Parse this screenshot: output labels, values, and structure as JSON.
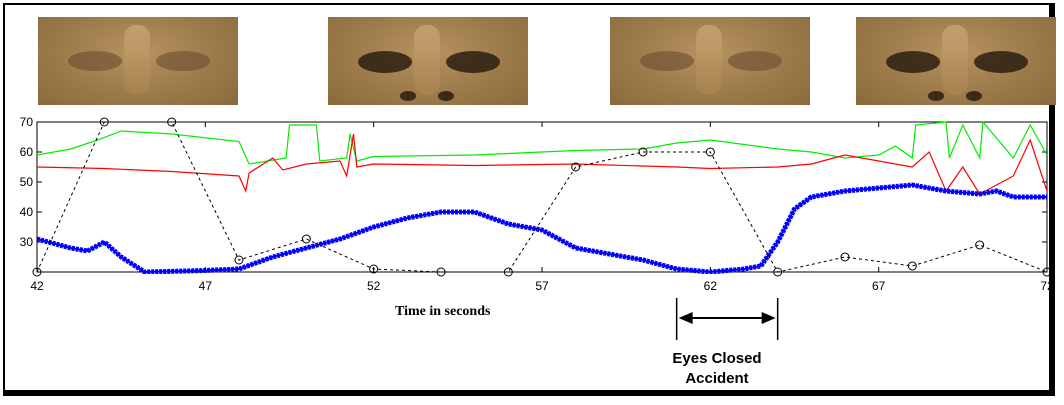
{
  "images": [
    {
      "name": "face-eyes-closed-1",
      "state": "closed"
    },
    {
      "name": "face-eyes-open-1",
      "state": "open"
    },
    {
      "name": "face-eyes-closed-2",
      "state": "closed"
    },
    {
      "name": "face-eyes-open-2",
      "state": "open"
    }
  ],
  "annotation": {
    "line1": "Eyes Closed",
    "line2": "Accident",
    "range": [
      61,
      64
    ]
  },
  "colors": {
    "blue": "#0000ff",
    "red": "#ff0000",
    "green": "#00ee00",
    "dashed": "#000000"
  },
  "chart_data": {
    "type": "line",
    "xlabel": "Time in seconds",
    "ylabel": "",
    "xlim": [
      42,
      72
    ],
    "ylim": [
      20,
      70
    ],
    "xticks": [
      42,
      47,
      52,
      57,
      62,
      67,
      72
    ],
    "yticks": [
      30,
      40,
      50,
      60,
      70
    ],
    "grid": false,
    "series": [
      {
        "key": "green",
        "style": "solid",
        "color": "#00ee00",
        "x": [
          42,
          43,
          43.8,
          44.5,
          46,
          48,
          48.3,
          49.4,
          49.5,
          50.3,
          50.4,
          51.2,
          51.3,
          51.5,
          52,
          55,
          58,
          60,
          61,
          62,
          64,
          65,
          66,
          67,
          67.5,
          68,
          68.1,
          69,
          69.1,
          69.5,
          70,
          70.1,
          71,
          71.5,
          72
        ],
        "y": [
          59,
          61,
          64,
          67,
          66,
          63.5,
          56,
          58,
          69,
          69,
          57,
          58,
          66,
          57,
          58.5,
          59,
          60.5,
          61,
          63,
          64,
          61,
          60,
          58,
          59,
          62,
          58,
          69,
          70,
          58,
          69,
          58,
          70,
          58,
          69,
          59
        ]
      },
      {
        "key": "red",
        "style": "solid",
        "color": "#ff0000",
        "x": [
          42,
          44,
          46,
          48,
          48.2,
          48.3,
          49,
          49.3,
          50,
          51,
          51.2,
          51.4,
          51.5,
          52,
          55,
          58,
          61,
          62,
          64,
          65,
          66,
          67,
          68,
          68.5,
          69,
          69.5,
          70,
          71,
          71.5,
          72
        ],
        "y": [
          55,
          54.5,
          53.5,
          52,
          47,
          53,
          58,
          54,
          56,
          57,
          52,
          66,
          55,
          56,
          55.5,
          56,
          55,
          54.5,
          55,
          56,
          59,
          57,
          55,
          60,
          47,
          55,
          46,
          52,
          64,
          47
        ]
      },
      {
        "key": "blue",
        "style": "thick-x",
        "color": "#0000ff",
        "x": [
          42,
          43,
          43.5,
          44,
          44.5,
          45.2,
          47,
          48,
          48.5,
          49,
          50,
          51,
          52,
          53,
          54,
          55,
          56,
          57,
          58,
          59,
          60,
          61,
          62,
          63,
          63.5,
          64,
          64.5,
          65,
          66,
          67,
          68,
          69,
          70,
          70.5,
          71,
          72
        ],
        "y": [
          31,
          28,
          27,
          30,
          25,
          20,
          20.5,
          21,
          23,
          25,
          28,
          31,
          35,
          38,
          40,
          40,
          36,
          34,
          28,
          26,
          24,
          21,
          20,
          21,
          22,
          30,
          41,
          45,
          47,
          48,
          49,
          47,
          46,
          47,
          45,
          45
        ]
      },
      {
        "key": "dashed",
        "style": "dashed-circles",
        "color": "#000000",
        "x": [
          42,
          44,
          46,
          48,
          50,
          52,
          54,
          56,
          58,
          60,
          62,
          64,
          66,
          68,
          70,
          72
        ],
        "y": [
          20,
          70,
          70,
          24,
          31,
          21,
          20,
          20,
          55,
          60,
          60,
          20,
          25,
          22,
          29,
          20
        ]
      }
    ]
  }
}
